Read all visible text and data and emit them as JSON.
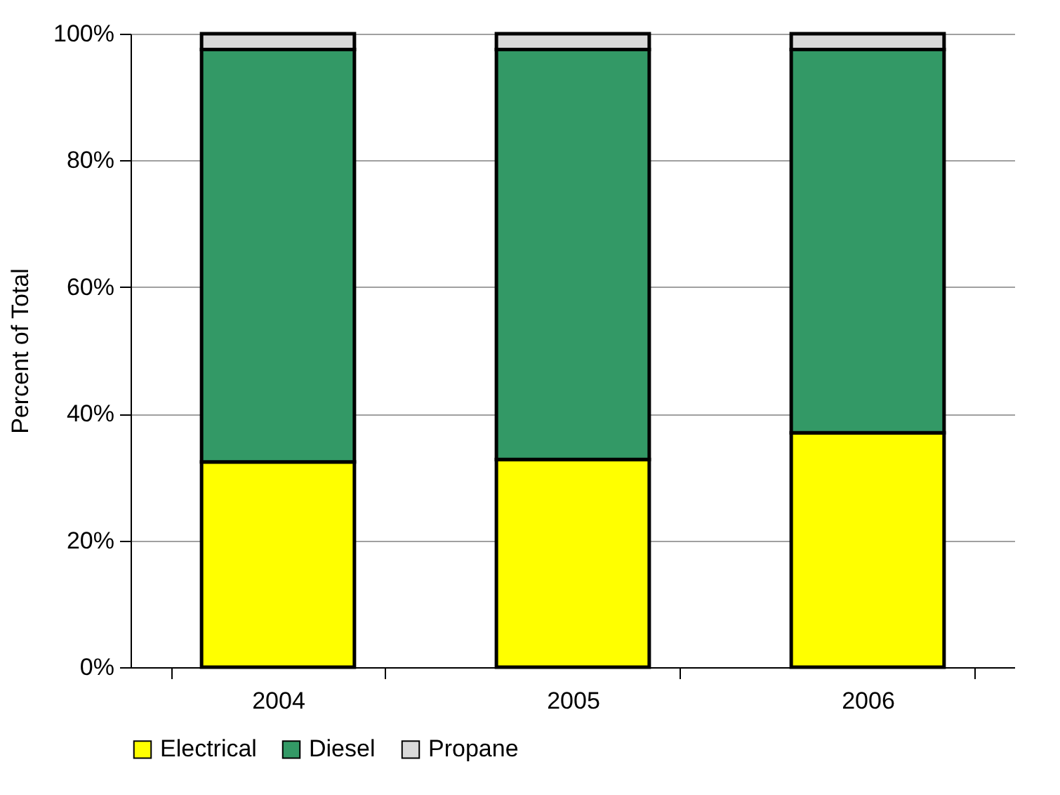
{
  "chart_data": {
    "type": "bar",
    "stacked": true,
    "categories": [
      "2004",
      "2005",
      "2006"
    ],
    "ylabel": "Percent of Total",
    "series": [
      {
        "name": "Electrical",
        "color": "#ffff00",
        "values": [
          32.4,
          32.8,
          37.0
        ]
      },
      {
        "name": "Diesel",
        "color": "#339966",
        "values": [
          65.1,
          64.7,
          60.5
        ]
      },
      {
        "name": "Propane",
        "color": "#d9d9d9",
        "values": [
          2.5,
          2.5,
          2.5
        ]
      }
    ],
    "ylim": [
      0,
      100
    ],
    "yticks": [
      {
        "value": 0,
        "label": "0%"
      },
      {
        "value": 20,
        "label": "20%"
      },
      {
        "value": 40,
        "label": "40%"
      },
      {
        "value": 60,
        "label": "60%"
      },
      {
        "value": 80,
        "label": "80%"
      },
      {
        "value": 100,
        "label": "100%"
      }
    ],
    "grid": "y",
    "legend": "bottom"
  }
}
